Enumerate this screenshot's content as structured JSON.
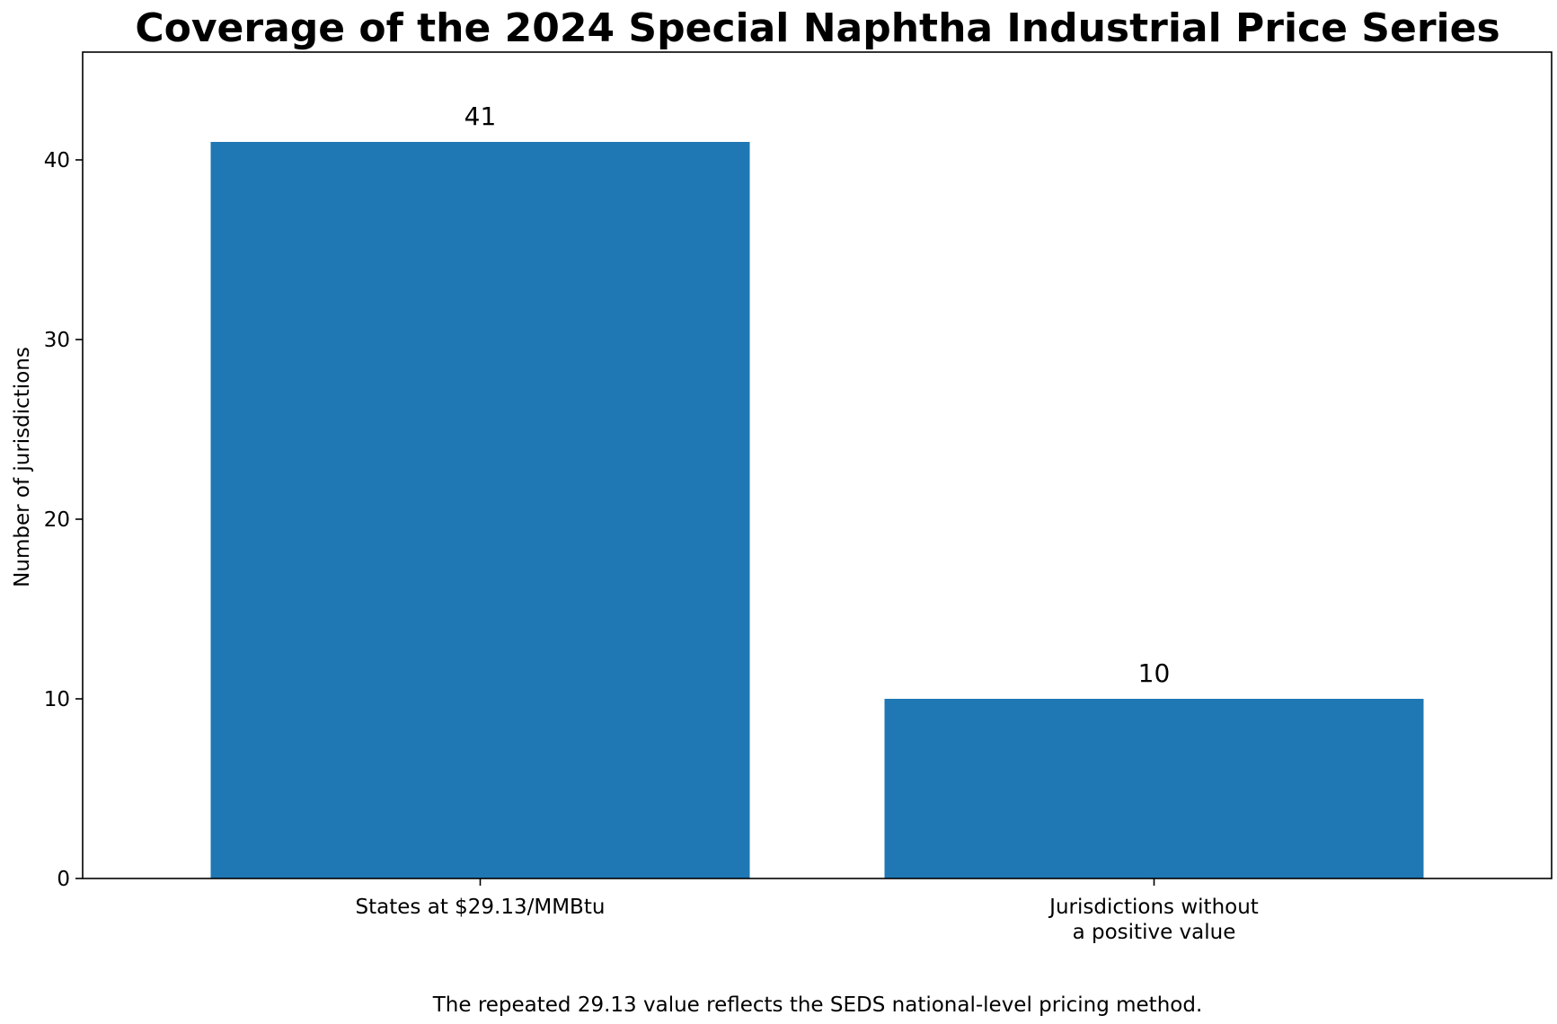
{
  "chart_data": {
    "type": "bar",
    "title": "Coverage of the 2024 Special Naphtha Industrial Price Series",
    "ylabel": "Number of jurisdictions",
    "xlabel": "",
    "categories": [
      [
        "States at $29.13/MMBtu"
      ],
      [
        "Jurisdictions without",
        "a positive value"
      ]
    ],
    "values": [
      41,
      10
    ],
    "data_labels": [
      "41",
      "10"
    ],
    "ylim": [
      0,
      46
    ],
    "yticks": [
      0,
      10,
      20,
      30,
      40
    ],
    "ytick_labels": [
      "0",
      "10",
      "20",
      "30",
      "40"
    ],
    "bar_color": "#1f77b4",
    "grid": false,
    "legend": false
  },
  "caption": "The repeated 29.13 value reflects the SEDS national-level pricing method."
}
